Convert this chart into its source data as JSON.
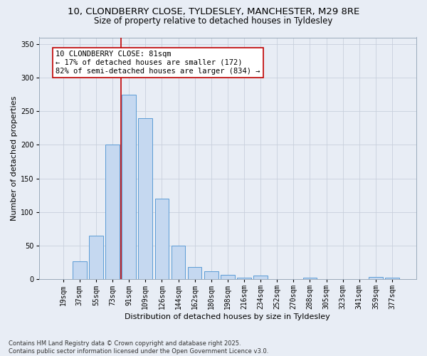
{
  "title_line1": "10, CLONDBERRY CLOSE, TYLDESLEY, MANCHESTER, M29 8RE",
  "title_line2": "Size of property relative to detached houses in Tyldesley",
  "xlabel": "Distribution of detached houses by size in Tyldesley",
  "ylabel": "Number of detached properties",
  "categories": [
    "19sqm",
    "37sqm",
    "55sqm",
    "73sqm",
    "91sqm",
    "109sqm",
    "126sqm",
    "144sqm",
    "162sqm",
    "180sqm",
    "198sqm",
    "216sqm",
    "234sqm",
    "252sqm",
    "270sqm",
    "288sqm",
    "305sqm",
    "323sqm",
    "341sqm",
    "359sqm",
    "377sqm"
  ],
  "values": [
    0,
    27,
    65,
    200,
    275,
    240,
    120,
    50,
    18,
    12,
    7,
    2,
    6,
    0,
    0,
    2,
    0,
    0,
    0,
    3,
    2
  ],
  "bar_color": "#c5d8f0",
  "bar_edge_color": "#5b9bd5",
  "vline_x": 3.5,
  "vline_color": "#c00000",
  "annotation_box_text": "10 CLONDBERRY CLOSE: 81sqm\n← 17% of detached houses are smaller (172)\n82% of semi-detached houses are larger (834) →",
  "ylim": [
    0,
    360
  ],
  "yticks": [
    0,
    50,
    100,
    150,
    200,
    250,
    300,
    350
  ],
  "grid_color": "#c8d0dc",
  "fig_bg_color": "#e8edf5",
  "plot_bg_color": "#e8edf5",
  "footer": "Contains HM Land Registry data © Crown copyright and database right 2025.\nContains public sector information licensed under the Open Government Licence v3.0.",
  "title_fontsize": 9.5,
  "subtitle_fontsize": 8.5,
  "axis_label_fontsize": 8,
  "tick_fontsize": 7,
  "annotation_fontsize": 7.5,
  "footer_fontsize": 6
}
